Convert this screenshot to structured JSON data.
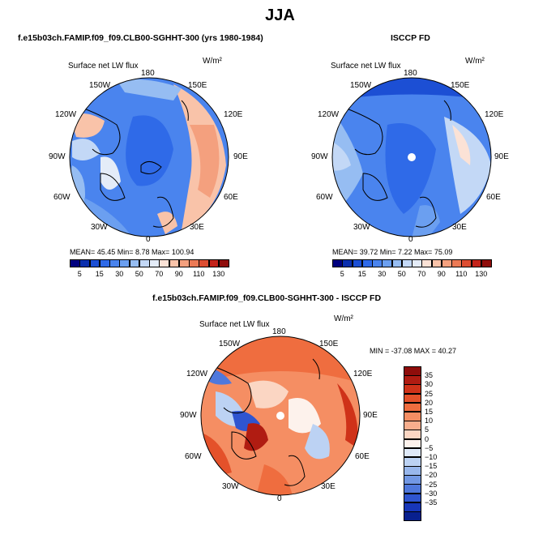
{
  "title": "JJA",
  "panels": {
    "model": {
      "title": "f.e15b03ch.FAMIP.f09_f09.CLB00-SGHHT-300 (yrs 1980-1984)",
      "var_label": "Surface net LW flux",
      "units": "W/m²",
      "stats": "MEAN=  45.45    Min=   8.78   Max= 100.94"
    },
    "obs": {
      "title": "ISCCP FD",
      "var_label": "Surface net LW flux",
      "units": "W/m²",
      "stats": "MEAN=  39.72    Min=   7.22   Max=  75.09"
    },
    "diff": {
      "title": "f.e15b03ch.FAMIP.f09_f09.CLB00-SGHHT-300 - ISCCP FD",
      "var_label": "Surface net LW flux",
      "units": "W/m²",
      "stats": "MIN = -37.08  MAX =  40.27"
    }
  },
  "lon_labels": {
    "top": "180",
    "tl": "150W",
    "tr": "150E",
    "ul": "120W",
    "ur": "120E",
    "l": "90W",
    "r": "90E",
    "ll": "60W",
    "lr": "60E",
    "bl": "30W",
    "br": "30E",
    "bottom": "0"
  },
  "colorbar_abs": {
    "ticks": [
      "5",
      "15",
      "30",
      "50",
      "70",
      "90",
      "110",
      "130"
    ],
    "colors": [
      "#00007f",
      "#0b2fae",
      "#1c4fd4",
      "#2f6ae8",
      "#4a84ee",
      "#6b9ff0",
      "#96bdf2",
      "#c3d8f6",
      "#e4ecf8",
      "#fbe2d6",
      "#f9c3a9",
      "#f4a07e",
      "#ec7a55",
      "#dd4d31",
      "#c3231a",
      "#8f0d0b"
    ]
  },
  "colorbar_diff": {
    "ticks": [
      "35",
      "30",
      "25",
      "20",
      "15",
      "10",
      "5",
      "0",
      "−5",
      "−10",
      "−15",
      "−20",
      "−25",
      "−30",
      "−35"
    ],
    "colors": [
      "#8f0d0b",
      "#b01c12",
      "#cf3219",
      "#e4512a",
      "#ef6d3f",
      "#f58e63",
      "#f8ae8d",
      "#fbd6c3",
      "#fdf2ec",
      "#dfe9f8",
      "#bcd2f3",
      "#98b7ec",
      "#7298e4",
      "#4f78dc",
      "#2f55d0",
      "#1736b8",
      "#08208f"
    ]
  }
}
